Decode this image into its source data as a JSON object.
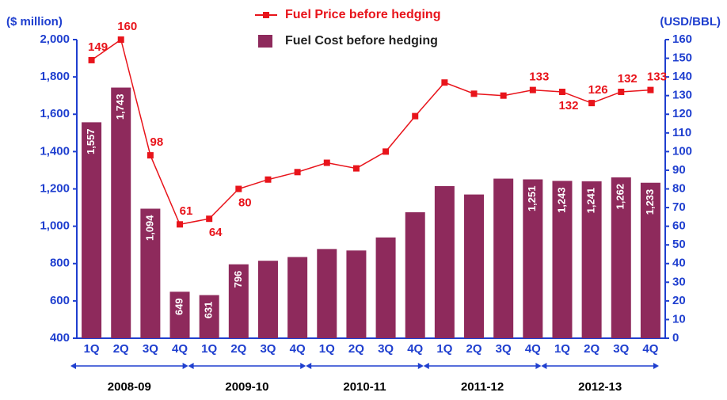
{
  "chart_data": {
    "type": "bar_line",
    "ylabel": "($ million)",
    "y2label": "(USD/BBL)",
    "categories": [
      "1Q",
      "2Q",
      "3Q",
      "4Q",
      "1Q",
      "2Q",
      "3Q",
      "4Q",
      "1Q",
      "2Q",
      "3Q",
      "4Q",
      "1Q",
      "2Q",
      "3Q",
      "4Q",
      "1Q",
      "2Q",
      "3Q",
      "4Q"
    ],
    "groups": [
      "2008-09",
      "2009-10",
      "2010-11",
      "2011-12",
      "2012-13"
    ],
    "ylim": [
      400,
      2000
    ],
    "yticks": [
      400,
      600,
      800,
      {
        "value": 1000,
        "label": "1,000"
      },
      {
        "value": 1200,
        "label": "1,200"
      },
      {
        "value": 1400,
        "label": "1,400"
      },
      {
        "value": 1600,
        "label": "1,600"
      },
      {
        "value": 1800,
        "label": "1,800"
      },
      {
        "value": 2000,
        "label": "2,000"
      }
    ],
    "y2lim": [
      0,
      160
    ],
    "y2ticks": [
      0,
      10,
      20,
      30,
      40,
      50,
      60,
      70,
      80,
      90,
      100,
      110,
      120,
      130,
      140,
      150,
      160
    ],
    "series": [
      {
        "name": "Fuel Cost before hedging",
        "type": "bar",
        "color": "#8e2a5c",
        "values": [
          1557,
          1743,
          1094,
          649,
          631,
          796,
          815,
          835,
          878,
          870,
          940,
          1075,
          1215,
          1170,
          1255,
          1251,
          1243,
          1241,
          1262,
          1233
        ],
        "value_labels": [
          "1,557",
          "1,743",
          "1,094",
          "649",
          "631",
          "796",
          null,
          null,
          null,
          null,
          null,
          null,
          null,
          null,
          null,
          "1,251",
          "1,243",
          "1,241",
          "1,262",
          "1,233"
        ]
      },
      {
        "name": "Fuel Price before hedging",
        "type": "line",
        "axis": "y2",
        "color": "#e8141b",
        "values": [
          149,
          160,
          98,
          61,
          64,
          80,
          85,
          89,
          94,
          91,
          100,
          119,
          137,
          131,
          130,
          133,
          132,
          126,
          132,
          133
        ],
        "value_labels": [
          "149",
          "160",
          "98",
          "61",
          "64",
          "80",
          null,
          null,
          null,
          null,
          null,
          null,
          null,
          null,
          null,
          "133",
          "132",
          "126",
          "132",
          "133"
        ]
      }
    ]
  }
}
